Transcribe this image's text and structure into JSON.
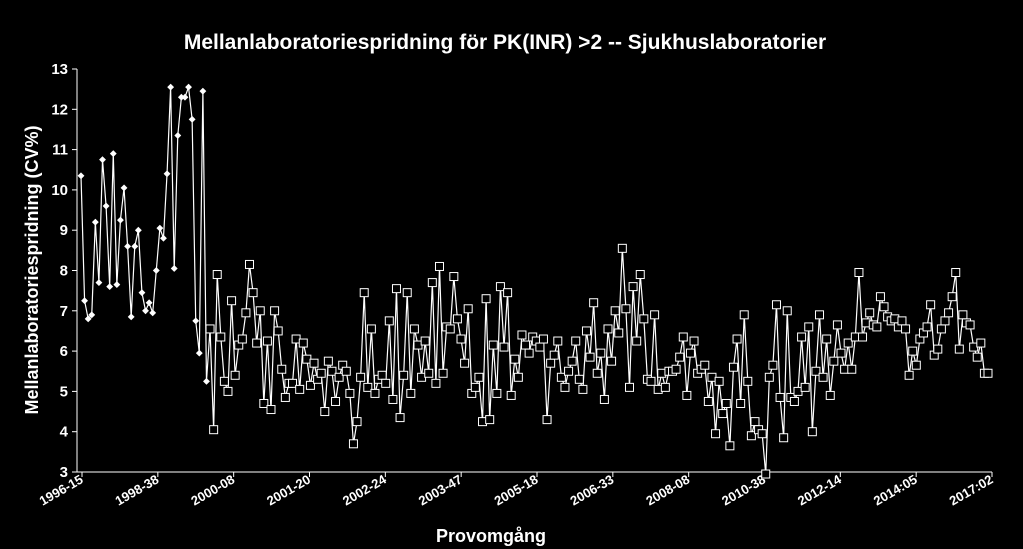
{
  "chart_data": {
    "type": "line",
    "title": "Mellanlaboratoriespridning för PK(INR) >2 -- Sjukhuslaboratorier",
    "xlabel": "Provomgång",
    "ylabel": "Mellanlaboratoriespridning (CV%)",
    "ylim": [
      3,
      13
    ],
    "yticks": [
      3,
      4,
      5,
      6,
      7,
      8,
      9,
      10,
      11,
      12,
      13
    ],
    "grid": false,
    "background": "#000000",
    "line_color": "#ffffff",
    "x_tick_labels": [
      "1996-15",
      "1998-38",
      "2000-08",
      "2001-20",
      "2002-24",
      "2003-47",
      "2005-18",
      "2006-33",
      "2008-08",
      "2010-38",
      "2012-14",
      "2014:05",
      "2017:02"
    ],
    "series": [
      {
        "marker": "filled-diamond",
        "values": [
          10.35,
          7.25,
          6.8,
          6.9,
          9.2,
          7.7,
          10.75,
          9.6,
          7.6,
          10.9,
          7.65,
          9.25,
          10.05,
          8.6,
          6.85,
          8.6,
          9.0,
          7.45,
          7.0,
          7.2,
          6.95,
          8.0,
          9.05,
          8.8,
          10.4,
          12.55,
          8.05,
          11.35,
          12.3,
          12.3,
          12.55,
          11.75,
          6.75,
          5.95,
          12.45,
          5.25
        ]
      },
      {
        "marker": "open-square",
        "values": [
          6.55,
          4.05,
          7.9,
          6.35,
          5.25,
          5.0,
          7.25,
          5.4,
          6.15,
          6.3,
          6.95,
          8.15,
          7.45,
          6.2,
          7.0,
          4.7,
          6.25,
          4.55,
          7.0,
          6.5,
          5.55,
          4.85,
          5.2,
          5.2,
          6.3,
          5.05,
          6.2,
          5.8,
          5.15,
          5.7,
          5.3,
          5.45,
          4.5,
          5.75,
          5.5,
          4.75,
          5.35,
          5.65,
          5.5,
          4.95,
          3.7,
          4.25,
          5.35,
          7.45,
          5.1,
          6.55,
          4.95,
          5.3,
          5.4,
          5.2,
          6.75,
          4.8,
          7.55,
          4.35,
          5.4,
          7.45,
          4.95,
          6.55,
          6.15,
          5.35,
          6.25,
          5.45,
          7.7,
          5.2,
          8.1,
          5.45,
          6.6,
          6.55,
          7.85,
          6.8,
          6.3,
          5.7,
          7.05,
          4.95,
          5.1,
          5.35,
          4.25,
          7.3,
          4.3,
          6.15,
          4.95,
          7.6,
          6.1,
          7.45,
          4.9,
          5.8,
          5.35,
          6.4,
          6.15,
          5.95,
          6.35,
          6.25,
          6.1,
          6.3,
          4.3,
          5.7,
          5.9,
          6.25,
          5.35,
          5.1,
          5.5,
          5.75,
          6.25,
          5.3,
          5.05,
          6.5,
          5.85,
          7.2,
          5.45,
          5.95,
          4.8,
          6.55,
          5.75,
          7.0,
          6.45,
          8.55,
          7.05,
          5.1,
          7.6,
          6.25,
          7.9,
          6.8,
          5.3,
          5.25,
          6.9,
          5.05,
          5.45,
          5.1,
          5.5,
          5.5,
          5.55,
          5.85,
          6.35,
          4.9,
          5.95,
          6.25,
          5.45,
          5.55,
          5.65,
          4.75,
          5.35,
          3.95,
          5.25,
          4.45,
          4.7,
          3.65,
          5.6,
          6.3,
          4.7,
          6.9,
          5.25,
          3.9,
          4.25,
          4.05,
          3.95,
          2.95,
          5.35,
          5.65,
          7.15,
          4.85,
          3.85,
          7.0,
          4.85,
          4.75,
          5.0,
          6.35,
          5.1,
          6.6,
          4.0,
          5.5,
          6.9,
          5.35,
          6.3,
          4.9,
          5.75,
          6.65,
          5.95,
          5.55,
          6.2,
          5.55,
          6.35,
          7.95,
          6.35,
          6.7,
          6.95,
          6.65,
          6.6,
          7.35,
          7.1,
          6.85,
          6.75,
          6.8,
          6.6,
          6.75,
          6.55,
          5.4,
          6.0,
          5.65,
          6.3,
          6.45,
          6.6,
          7.15,
          5.9,
          6.05,
          6.55,
          6.75,
          6.95,
          7.35,
          7.95,
          6.05,
          6.9,
          6.7,
          6.65,
          6.1,
          5.85,
          6.2,
          5.45,
          5.45
        ]
      }
    ]
  }
}
